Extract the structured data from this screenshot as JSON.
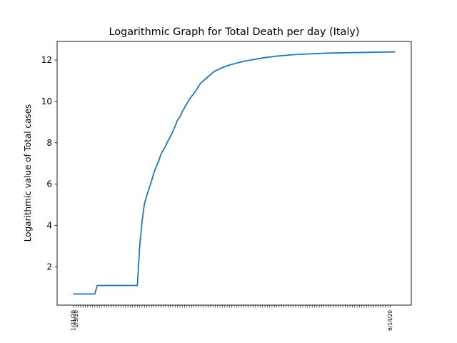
{
  "chart_data": {
    "type": "line",
    "title": "Logarithmic Graph for Total Death per day (Italy)",
    "xlabel": "",
    "ylabel": "Logarithmic value of Total cases",
    "ylim": [
      0.15,
      12.9
    ],
    "yticks": [
      2,
      4,
      6,
      8,
      10,
      12
    ],
    "grid": false,
    "x_tick_labels": [
      "1/31/20",
      "2/3/20",
      "",
      "",
      "",
      "",
      "",
      "",
      "",
      "",
      "",
      "",
      "",
      "",
      "",
      "",
      "",
      "",
      "",
      "",
      "",
      "",
      "",
      "",
      "",
      "",
      "",
      "",
      "",
      "",
      "",
      "",
      "",
      "",
      "",
      "",
      "",
      "",
      "",
      "",
      "",
      "",
      "",
      "",
      "",
      "",
      "",
      "",
      "",
      "",
      "",
      "",
      "",
      "",
      "",
      "",
      "",
      "",
      "",
      "",
      "",
      "",
      "",
      "",
      "",
      "",
      "",
      "",
      "",
      "",
      "",
      "",
      "",
      "",
      "",
      "",
      "",
      "",
      "",
      "",
      "",
      "",
      "",
      "",
      "",
      "",
      "",
      "",
      "",
      "",
      "",
      "",
      "",
      "",
      "",
      "",
      "",
      "",
      "",
      "",
      "",
      "",
      "",
      "",
      "",
      "",
      "",
      "",
      "",
      "",
      "",
      "",
      "",
      "",
      "",
      "",
      "",
      "",
      "",
      "",
      "",
      "",
      "",
      "",
      "",
      "",
      "",
      "",
      "",
      "",
      "",
      "",
      "",
      "",
      "6/14/20"
    ],
    "series": [
      {
        "values": [
          0.69,
          0.69,
          0.69,
          0.69,
          0.69,
          0.69,
          0.69,
          0.69,
          0.69,
          0.69,
          1.1,
          1.1,
          1.1,
          1.1,
          1.1,
          1.1,
          1.1,
          1.1,
          1.1,
          1.1,
          1.1,
          1.1,
          1.1,
          1.1,
          1.1,
          1.1,
          1.1,
          1.1,
          3.0,
          4.2,
          5.05,
          5.45,
          5.8,
          6.15,
          6.55,
          6.85,
          7.1,
          7.45,
          7.65,
          7.85,
          8.1,
          8.3,
          8.55,
          8.8,
          9.1,
          9.25,
          9.5,
          9.7,
          9.9,
          10.1,
          10.25,
          10.4,
          10.55,
          10.75,
          10.9,
          11.0,
          11.1,
          11.2,
          11.3,
          11.4,
          11.48,
          11.53,
          11.58,
          11.63,
          11.68,
          11.72,
          11.76,
          11.79,
          11.82,
          11.85,
          11.88,
          11.91,
          11.94,
          11.96,
          11.98,
          12.0,
          12.02,
          12.04,
          12.06,
          12.08,
          12.1,
          12.12,
          12.13,
          12.15,
          12.16,
          12.18,
          12.19,
          12.2,
          12.21,
          12.22,
          12.23,
          12.24,
          12.25,
          12.26,
          12.265,
          12.27,
          12.28,
          12.285,
          12.29,
          12.295,
          12.3,
          12.305,
          12.31,
          12.315,
          12.32,
          12.325,
          12.33,
          12.333,
          12.336,
          12.339,
          12.342,
          12.345,
          12.347,
          12.349,
          12.351,
          12.353,
          12.355,
          12.357,
          12.359,
          12.361,
          12.363,
          12.365,
          12.367,
          12.369,
          12.371,
          12.373,
          12.375,
          12.377,
          12.379,
          12.381,
          12.383,
          12.385,
          12.387,
          12.389,
          12.391,
          12.393,
          12.395
        ]
      }
    ],
    "line_color": "#1f77b4"
  }
}
